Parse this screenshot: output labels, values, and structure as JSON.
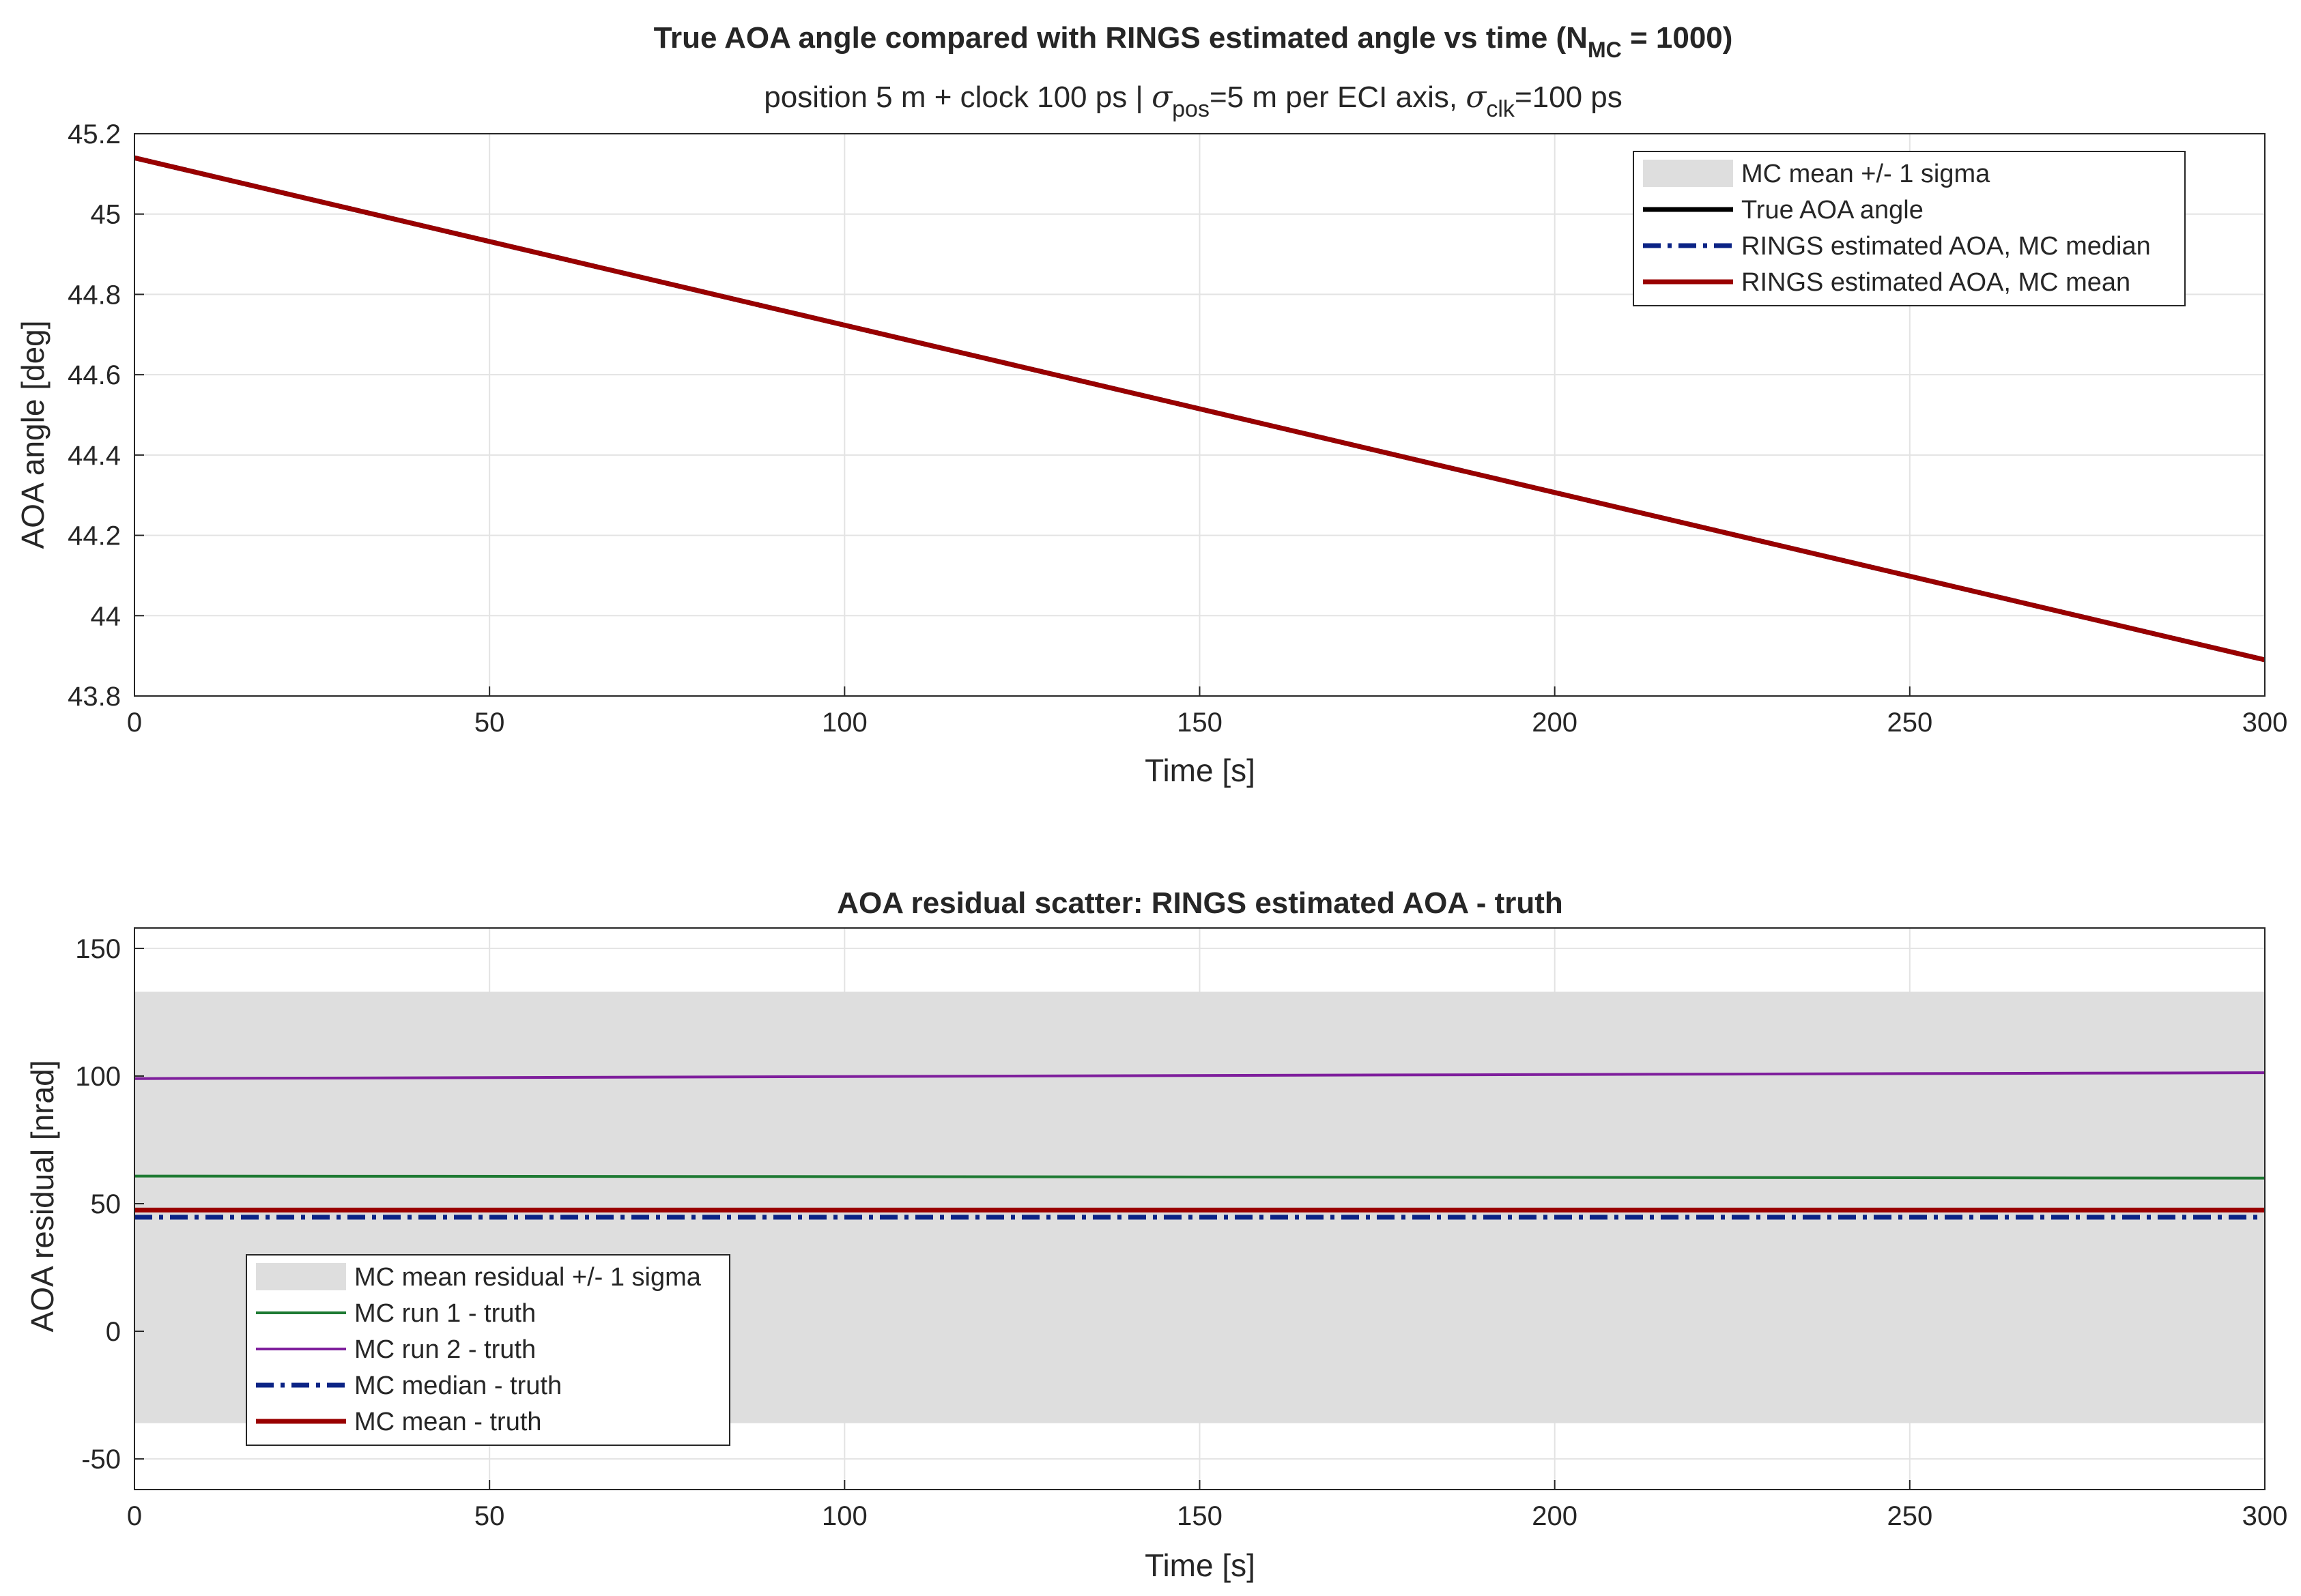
{
  "chart_data": [
    {
      "type": "line",
      "title": {
        "main": "True AOA angle compared with RINGS estimated angle vs time  (N",
        "sub": "MC",
        "end": " = 1000)"
      },
      "subtitle": {
        "p1": "position 5 m + clock 100 ps | ",
        "sigma1": "σ",
        "sub1": "pos",
        "p2": "=5 m per ECI axis, ",
        "sigma2": "σ",
        "sub2": "clk",
        "p3": "=100 ps"
      },
      "xlabel": "Time [s]",
      "ylabel": "AOA angle [deg]",
      "xlim": [
        0,
        300
      ],
      "ylim": [
        43.8,
        45.2
      ],
      "xticks": [
        "0",
        "50",
        "100",
        "150",
        "200",
        "250",
        "300"
      ],
      "yticks": [
        "43.8",
        "44",
        "44.2",
        "44.4",
        "44.6",
        "44.8",
        "45",
        "45.2"
      ],
      "grid": true,
      "legend_position": "top-right",
      "series": [
        {
          "name": "MC mean +/- 1 sigma",
          "kind": "band",
          "color": "#dedede",
          "x": [
            0,
            300
          ],
          "lower": [
            45.14,
            43.89
          ],
          "upper": [
            45.14,
            43.89
          ]
        },
        {
          "name": "True AOA angle",
          "kind": "line",
          "color": "#000000",
          "x": [
            0,
            300
          ],
          "y": [
            45.14,
            43.89
          ]
        },
        {
          "name": "RINGS estimated AOA, MC median",
          "kind": "dashdot",
          "color": "#0b2385",
          "x": [
            0,
            300
          ],
          "y": [
            45.14,
            43.89
          ]
        },
        {
          "name": "RINGS estimated AOA, MC mean",
          "kind": "line",
          "color": "#990000",
          "x": [
            0,
            300
          ],
          "y": [
            45.14,
            43.89
          ]
        }
      ]
    },
    {
      "type": "line",
      "title": "AOA residual scatter: RINGS estimated AOA - truth",
      "xlabel": "Time [s]",
      "ylabel": "AOA residual [nrad]",
      "xlim": [
        0,
        300
      ],
      "ylim": [
        -62,
        158
      ],
      "xticks": [
        "0",
        "50",
        "100",
        "150",
        "200",
        "250",
        "300"
      ],
      "yticks": [
        "-50",
        "0",
        "50",
        "100",
        "150"
      ],
      "grid": true,
      "legend_position": "bottom-left",
      "series": [
        {
          "name": "MC mean residual +/- 1 sigma",
          "kind": "band",
          "color": "#dedede",
          "x": [
            0,
            300
          ],
          "lower": [
            -36,
            -36
          ],
          "upper": [
            133,
            133
          ]
        },
        {
          "name": "MC run 1 - truth",
          "kind": "line",
          "color": "#1e7a33",
          "x": [
            0,
            100,
            200,
            300
          ],
          "y": [
            60.8,
            60.6,
            60.3,
            60.0
          ]
        },
        {
          "name": "MC run 2 - truth",
          "kind": "line",
          "color": "#7e1e9c",
          "x": [
            0,
            100,
            200,
            300
          ],
          "y": [
            99.0,
            99.8,
            100.6,
            101.3
          ]
        },
        {
          "name": "MC median - truth",
          "kind": "dashdot",
          "color": "#0b2385",
          "x": [
            0,
            300
          ],
          "y": [
            44.7,
            44.7
          ]
        },
        {
          "name": "MC mean - truth",
          "kind": "line",
          "color": "#990000",
          "x": [
            0,
            300
          ],
          "y": [
            47.5,
            47.5
          ]
        }
      ]
    }
  ]
}
